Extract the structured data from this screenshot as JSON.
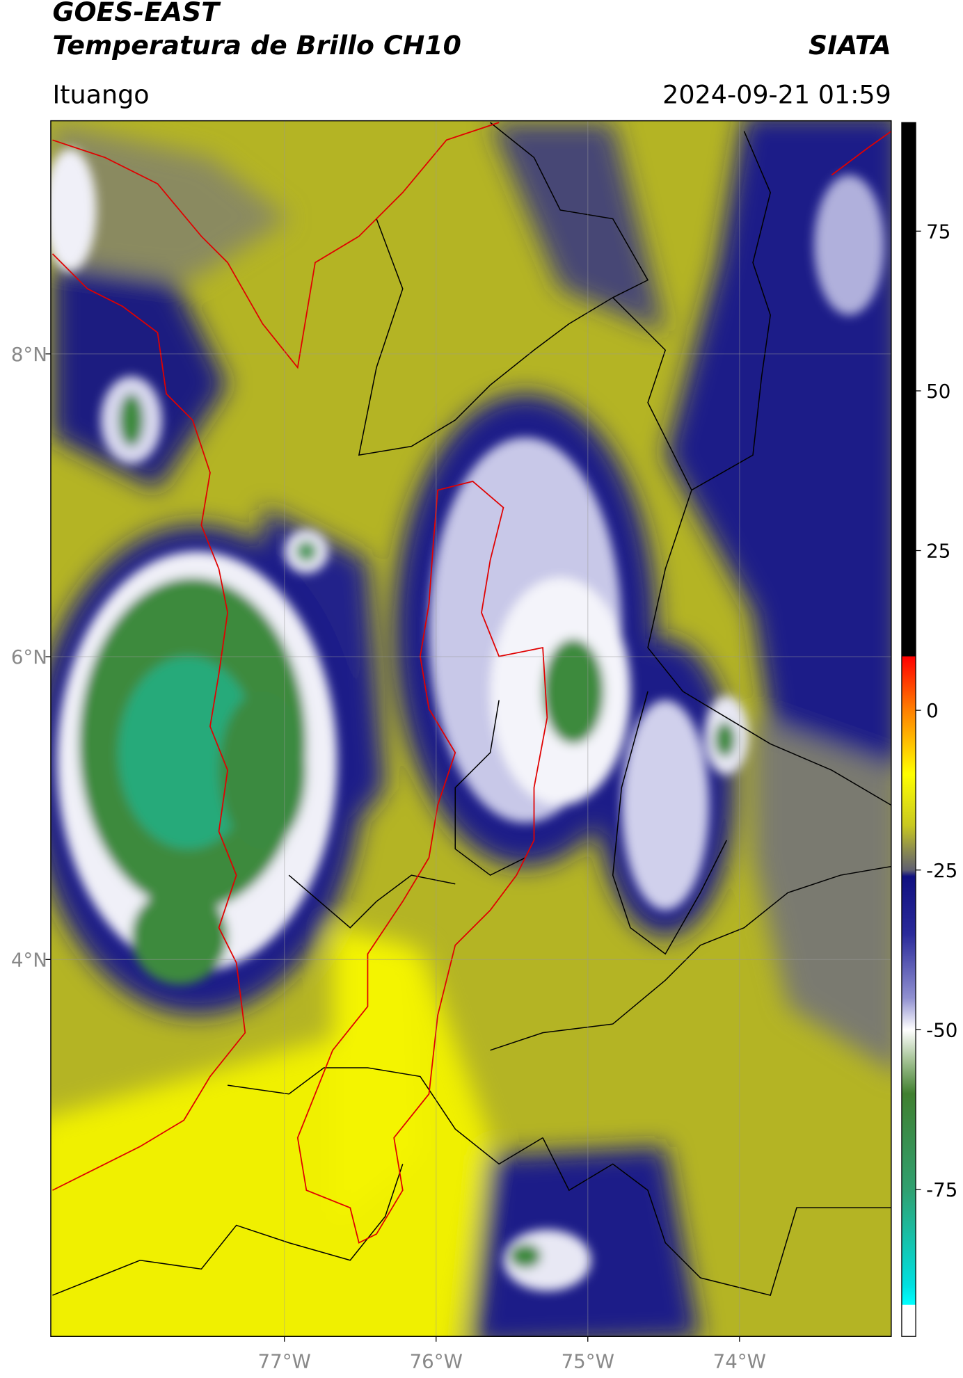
{
  "header": {
    "title": "GOES-EAST",
    "subtitle": "Temperatura de Brillo CH10",
    "source": "SIATA",
    "location": "Ituango",
    "datetime": "2024-09-21 01:59"
  },
  "map": {
    "xlim": [
      -78.54,
      -73.0
    ],
    "ylim": [
      1.51,
      9.54
    ],
    "xticks": [
      {
        "value": -77,
        "label": "77°W"
      },
      {
        "value": -76,
        "label": "76°W"
      },
      {
        "value": -75,
        "label": "75°W"
      },
      {
        "value": -74,
        "label": "74°W"
      }
    ],
    "yticks": [
      {
        "value": 8,
        "label": "8°N"
      },
      {
        "value": 6,
        "label": "6°N"
      },
      {
        "value": 4,
        "label": "4°N"
      }
    ],
    "grid": true
  },
  "colorbar": {
    "lim": [
      -98,
      92
    ],
    "ticks": [
      75,
      50,
      25,
      0,
      -25,
      -50,
      -75
    ],
    "stops": [
      {
        "value": 92,
        "color": "#000000"
      },
      {
        "value": 8.5,
        "color": "#000000"
      },
      {
        "value": 8.4,
        "color": "#ff0000"
      },
      {
        "value": 0,
        "color": "#ff8000"
      },
      {
        "value": -10,
        "color": "#ffff00"
      },
      {
        "value": -18,
        "color": "#c8c820"
      },
      {
        "value": -22,
        "color": "#8a8a50"
      },
      {
        "value": -25,
        "color": "#606070"
      },
      {
        "value": -26,
        "color": "#101080"
      },
      {
        "value": -35,
        "color": "#2a2a9a"
      },
      {
        "value": -45,
        "color": "#9090d0"
      },
      {
        "value": -50,
        "color": "#ffffff"
      },
      {
        "value": -55,
        "color": "#a0c090"
      },
      {
        "value": -60,
        "color": "#408030"
      },
      {
        "value": -75,
        "color": "#30a070"
      },
      {
        "value": -90,
        "color": "#00e0e0"
      },
      {
        "value": -93,
        "color": "#00ffff"
      },
      {
        "value": -93.1,
        "color": "#ffffff"
      },
      {
        "value": -98,
        "color": "#ffffff"
      }
    ]
  }
}
